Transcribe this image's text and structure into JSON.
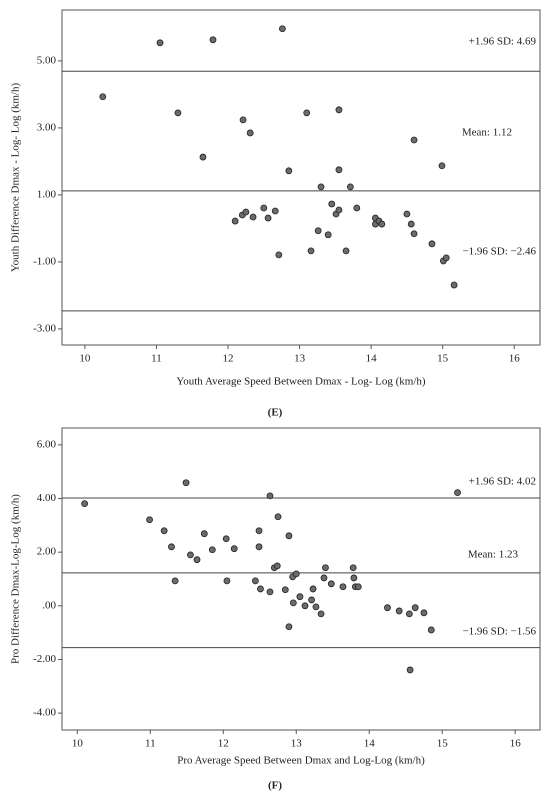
{
  "chart_data": [
    {
      "type": "scatter",
      "panel_label": "(E)",
      "xlabel": "Youth Average Speed Between Dmax - Log- Log (km/h)",
      "ylabel": "Youth Difference Dmax - Log- Log (km/h)",
      "xlim": [
        9.68,
        16.36
      ],
      "ylim": [
        -3.48,
        6.52
      ],
      "xticks": [
        10,
        11,
        12,
        13,
        14,
        15,
        16
      ],
      "yticks": [
        {
          "value": 5,
          "label": "5.00"
        },
        {
          "value": 3,
          "label": "3.00"
        },
        {
          "value": 1,
          "label": "1.00"
        },
        {
          "value": -1,
          "label": "-1.00"
        },
        {
          "value": -3,
          "label": "-3.00"
        }
      ],
      "color": "#6b6b6b",
      "grid": false,
      "ref_lines": [
        {
          "value": 4.69,
          "label": "+1.96 SD: 4.69"
        },
        {
          "value": 1.12,
          "label": "Mean: 1.12"
        },
        {
          "value": -2.46,
          "label": "−1.96 SD: −2.46"
        }
      ],
      "x": [
        10.25,
        11.05,
        11.3,
        11.65,
        11.79,
        12.1,
        12.2,
        12.25,
        12.35,
        12.5,
        12.56,
        12.66,
        12.21,
        12.31,
        12.71,
        12.76,
        12.85,
        13.1,
        13.16,
        13.26,
        13.3,
        13.4,
        13.45,
        13.51,
        13.55,
        13.55,
        13.55,
        13.65,
        13.71,
        13.8,
        14.06,
        14.06,
        14.11,
        14.15,
        14.5,
        14.56,
        14.6,
        14.6,
        14.85,
        14.99,
        15.01,
        15.05,
        15.16
      ],
      "values": [
        3.93,
        5.54,
        3.45,
        2.13,
        5.63,
        0.22,
        0.4,
        0.49,
        0.34,
        0.61,
        0.31,
        0.52,
        3.24,
        2.85,
        -0.79,
        5.96,
        1.72,
        3.45,
        -0.67,
        -0.07,
        1.24,
        -0.19,
        0.73,
        0.43,
        0.55,
        3.54,
        1.75,
        -0.67,
        1.24,
        0.61,
        0.31,
        0.13,
        0.22,
        0.13,
        0.43,
        0.13,
        -0.16,
        2.64,
        -0.46,
        1.87,
        -0.97,
        -0.88,
        -1.69
      ]
    },
    {
      "type": "scatter",
      "panel_label": "(F)",
      "xlabel": "Pro Average Speed Between Dmax and Log-Log (km/h)",
      "ylabel": "Pro Difference Dmax-Log-Log (km/h)",
      "xlim": [
        9.79,
        16.34
      ],
      "ylim": [
        -4.63,
        6.63
      ],
      "xticks": [
        10,
        11,
        12,
        13,
        14,
        15,
        16
      ],
      "yticks": [
        {
          "value": 6,
          "label": "6.00"
        },
        {
          "value": 4,
          "label": "4.00"
        },
        {
          "value": 2,
          "label": "2.00"
        },
        {
          "value": 0,
          "label": ".00"
        },
        {
          "value": -2,
          "label": "-2.00"
        },
        {
          "value": -4,
          "label": "-4.00"
        }
      ],
      "color": "#6b6b6b",
      "grid": false,
      "ref_lines": [
        {
          "value": 4.02,
          "label": "+1.96 SD: 4.02"
        },
        {
          "value": 1.23,
          "label": "Mean: 1.23"
        },
        {
          "value": -1.56,
          "label": "−1.96 SD: −1.56"
        }
      ],
      "x": [
        10.1,
        10.99,
        11.19,
        11.29,
        11.34,
        11.49,
        11.55,
        11.64,
        11.74,
        11.85,
        12.04,
        12.05,
        12.15,
        12.44,
        12.49,
        12.49,
        12.51,
        12.64,
        12.64,
        12.7,
        12.74,
        12.75,
        12.85,
        12.9,
        12.9,
        12.95,
        12.96,
        13.0,
        13.05,
        13.12,
        13.21,
        13.23,
        13.27,
        13.34,
        13.38,
        13.4,
        13.48,
        13.64,
        13.78,
        13.79,
        13.81,
        13.85,
        14.25,
        14.41,
        14.55,
        14.63,
        14.75,
        14.85,
        14.56,
        15.21
      ],
      "values": [
        3.81,
        3.21,
        2.8,
        2.2,
        0.93,
        4.59,
        1.9,
        1.72,
        2.69,
        2.09,
        2.5,
        0.93,
        2.13,
        0.93,
        2.8,
        2.2,
        0.63,
        0.52,
        4.1,
        1.42,
        1.49,
        3.32,
        0.6,
        2.61,
        -0.78,
        1.08,
        0.11,
        1.19,
        0.34,
        0.0,
        0.22,
        0.63,
        -0.04,
        -0.3,
        1.04,
        1.42,
        0.82,
        0.71,
        1.42,
        1.04,
        0.71,
        0.71,
        -0.07,
        -0.19,
        -0.3,
        -0.07,
        -0.26,
        -0.9,
        -2.39,
        4.22
      ]
    }
  ]
}
